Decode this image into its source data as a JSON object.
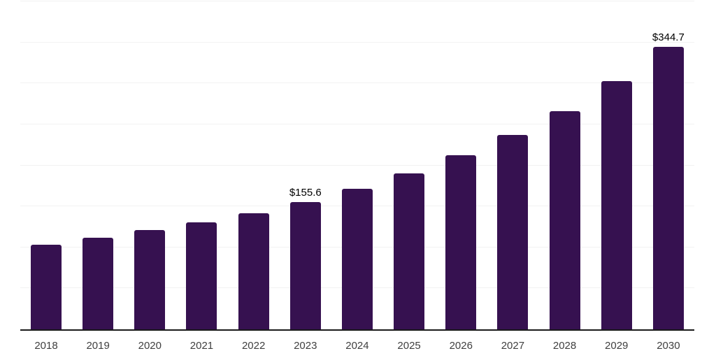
{
  "chart_data": {
    "type": "bar",
    "title": "",
    "xlabel": "",
    "ylabel": "",
    "categories": [
      "2018",
      "2019",
      "2020",
      "2021",
      "2022",
      "2023",
      "2024",
      "2025",
      "2026",
      "2027",
      "2028",
      "2029",
      "2030"
    ],
    "values": [
      103.4,
      111.9,
      120.7,
      130.5,
      141.5,
      155.6,
      171.4,
      189.8,
      212.0,
      237.2,
      266.5,
      302.6,
      344.7
    ],
    "data_labels": [
      {
        "category": "2023",
        "text": "$155.6"
      },
      {
        "category": "2030",
        "text": "$344.7"
      }
    ],
    "ylim": [
      0,
      400
    ],
    "gridline_step": 50,
    "grid": "horizontal-only",
    "y_tick_labels_visible": false,
    "legend": "none"
  },
  "style": {
    "bar_color": "#361150",
    "axis_line_color": "#1a1a1a",
    "gridline_color": "#f2f2f2",
    "tick_label_color": "#404040",
    "data_label_color": "#000000",
    "background_color": "#ffffff"
  }
}
